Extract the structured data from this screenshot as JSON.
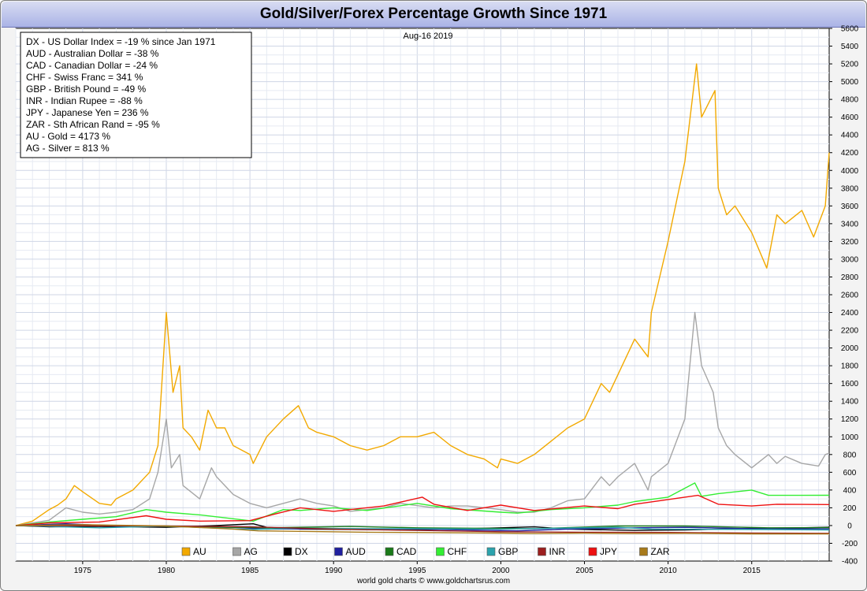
{
  "title": "Gold/Silver/Forex Percentage Growth Since 1971",
  "date_label": "Aug-16  2019",
  "footer": "world gold charts © www.goldchartsrus.com",
  "stats_box": [
    "DX - US Dollar Index = -19 % since Jan 1971",
    "AUD - Australian Dollar = -38 %",
    "CAD - Canadian Dollar = -24 %",
    "CHF - Swiss Franc = 341 %",
    "GBP - British Pound = -49 %",
    "INR - Indian Rupee = -88 %",
    "JPY - Japanese Yen = 236 %",
    "ZAR - Sth African Rand = -95 %",
    "AU - Gold = 4173 %",
    "AG - Silver = 813 %"
  ],
  "chart_data": {
    "type": "line",
    "title": "Gold/Silver/Forex Percentage Growth Since 1971",
    "xlim": [
      1971.0,
      2019.63
    ],
    "ylim": [
      -400,
      5600
    ],
    "x_ticks": [
      1975,
      1980,
      1985,
      1990,
      1995,
      2000,
      2005,
      2010,
      2015
    ],
    "y_ticks": [
      -400,
      -200,
      0,
      200,
      400,
      600,
      800,
      1000,
      1200,
      1400,
      1600,
      1800,
      2000,
      2200,
      2400,
      2600,
      2800,
      3000,
      3200,
      3400,
      3600,
      3800,
      4000,
      4200,
      4400,
      4600,
      4800,
      5000,
      5200,
      5400,
      5600
    ],
    "y_axis_side": "right",
    "grid": true,
    "legend_position": "bottom",
    "series": [
      {
        "name": "AU",
        "color": "#f2a900",
        "x": [
          1971,
          1972,
          1973,
          1973.5,
          1974,
          1974.5,
          1975,
          1976,
          1976.7,
          1977,
          1978,
          1979,
          1979.5,
          1980.0,
          1980.4,
          1980.8,
          1981,
          1981.5,
          1982,
          1982.5,
          1983,
          1983.5,
          1984,
          1985,
          1985.2,
          1986,
          1987,
          1987.9,
          1988.5,
          1989,
          1990,
          1991,
          1992,
          1993,
          1994,
          1995,
          1996,
          1997,
          1998,
          1999,
          1999.8,
          2000,
          2001,
          2002,
          2003,
          2004,
          2005,
          2006,
          2006.5,
          2007,
          2008,
          2008.8,
          2009,
          2010,
          2011,
          2011.7,
          2012,
          2012.8,
          2013,
          2013.5,
          2014,
          2015,
          2015.9,
          2016.5,
          2017,
          2018,
          2018.7,
          2019.4,
          2019.63
        ],
        "values": [
          0,
          50,
          180,
          230,
          300,
          450,
          380,
          250,
          230,
          300,
          400,
          600,
          900,
          2400,
          1500,
          1800,
          1100,
          1000,
          850,
          1300,
          1100,
          1100,
          900,
          800,
          700,
          1000,
          1200,
          1350,
          1100,
          1050,
          1000,
          900,
          850,
          900,
          1000,
          1000,
          1050,
          900,
          800,
          750,
          650,
          750,
          700,
          800,
          950,
          1100,
          1200,
          1600,
          1500,
          1700,
          2100,
          1900,
          2400,
          3200,
          4100,
          5200,
          4600,
          4900,
          3800,
          3500,
          3600,
          3300,
          2900,
          3500,
          3400,
          3550,
          3250,
          3600,
          4200
        ]
      },
      {
        "name": "AG",
        "color": "#a6a6a6",
        "x": [
          1971,
          1973,
          1974,
          1975,
          1976,
          1977,
          1978,
          1979,
          1979.5,
          1980.0,
          1980.3,
          1980.8,
          1981,
          1982,
          1982.7,
          1983,
          1984,
          1985,
          1986,
          1987,
          1988,
          1989,
          1990,
          1991,
          1993,
          1994,
          1996,
          1997,
          1998,
          2000,
          2001,
          2002,
          2003,
          2004,
          2005,
          2006,
          2006.5,
          2007,
          2008,
          2008.8,
          2009,
          2010,
          2011.0,
          2011.3,
          2011.6,
          2012,
          2012.7,
          2013,
          2013.5,
          2014,
          2015,
          2016,
          2016.5,
          2017,
          2018,
          2019,
          2019.4,
          2019.63
        ],
        "values": [
          0,
          60,
          200,
          150,
          130,
          150,
          180,
          300,
          600,
          1200,
          650,
          800,
          450,
          300,
          650,
          550,
          350,
          250,
          200,
          250,
          300,
          250,
          220,
          160,
          200,
          250,
          200,
          220,
          220,
          180,
          150,
          150,
          200,
          280,
          300,
          550,
          450,
          550,
          700,
          400,
          550,
          700,
          1200,
          1800,
          2400,
          1800,
          1500,
          1100,
          900,
          800,
          650,
          800,
          700,
          780,
          700,
          670,
          800,
          815
        ]
      },
      {
        "name": "DX",
        "color": "#000000",
        "x": [
          1971,
          1973,
          1976,
          1980,
          1983,
          1985.2,
          1986,
          1988,
          1992,
          1995,
          2000,
          2002,
          2004,
          2008,
          2011,
          2015,
          2017,
          2019.63
        ],
        "values": [
          0,
          -15,
          -10,
          -20,
          0,
          20,
          -20,
          -40,
          -45,
          -50,
          -25,
          -15,
          -40,
          -55,
          -50,
          -30,
          -30,
          -19
        ]
      },
      {
        "name": "AUD",
        "color": "#1f1f9f",
        "x": [
          1971,
          1974,
          1977,
          1980,
          1984,
          1986,
          1990,
          1995,
          2001,
          2004,
          2008,
          2011,
          2015,
          2019.63
        ],
        "values": [
          0,
          20,
          -5,
          -10,
          -20,
          -40,
          -35,
          -40,
          -60,
          -40,
          -25,
          -20,
          -35,
          -38
        ]
      },
      {
        "name": "CAD",
        "color": "#1a7a1a",
        "x": [
          1971,
          1976,
          1980,
          1986,
          1991,
          1995,
          2002,
          2007,
          2011,
          2016,
          2019.63
        ],
        "values": [
          0,
          5,
          -10,
          -25,
          -10,
          -25,
          -35,
          -5,
          -5,
          -25,
          -24
        ]
      },
      {
        "name": "CHF",
        "color": "#33ee33",
        "x": [
          1971,
          1973,
          1975,
          1977,
          1978.8,
          1980,
          1982,
          1985.2,
          1987,
          1988,
          1990,
          1992,
          1995,
          1997,
          2000,
          2001,
          2003,
          2005,
          2007,
          2008,
          2010,
          2011.6,
          2012,
          2013,
          2015,
          2016,
          2019.63
        ],
        "values": [
          0,
          40,
          70,
          100,
          180,
          150,
          120,
          50,
          180,
          170,
          200,
          170,
          250,
          190,
          150,
          140,
          180,
          200,
          230,
          270,
          320,
          480,
          330,
          360,
          400,
          340,
          341
        ]
      },
      {
        "name": "GBP",
        "color": "#2ba3ad",
        "x": [
          1971,
          1976,
          1980,
          1985,
          1988,
          1992,
          1995,
          2000,
          2007,
          2009,
          2016,
          2019.63
        ],
        "values": [
          0,
          -25,
          -5,
          -45,
          -30,
          -35,
          -35,
          -40,
          -20,
          -40,
          -45,
          -49
        ]
      },
      {
        "name": "INR",
        "color": "#9c1f1f",
        "x": [
          1971,
          1980,
          1985,
          1990,
          1995,
          2000,
          2005,
          2010,
          2015,
          2019.63
        ],
        "values": [
          0,
          -5,
          -15,
          -40,
          -55,
          -70,
          -75,
          -78,
          -85,
          -88
        ]
      },
      {
        "name": "JPY",
        "color": "#ee1111",
        "x": [
          1971,
          1973,
          1976,
          1978.8,
          1980,
          1982,
          1985,
          1986.5,
          1988,
          1990,
          1993,
          1995.3,
          1996,
          1998,
          2000,
          2002,
          2005,
          2007,
          2008,
          2011.8,
          2013,
          2015,
          2016.5,
          2019.63
        ],
        "values": [
          0,
          30,
          40,
          110,
          70,
          50,
          55,
          130,
          200,
          160,
          220,
          320,
          240,
          170,
          230,
          170,
          220,
          190,
          240,
          340,
          240,
          220,
          240,
          236
        ]
      },
      {
        "name": "ZAR",
        "color": "#a87a1a",
        "x": [
          1971,
          1975,
          1980,
          1984,
          1985.5,
          1988,
          1992,
          1996,
          2000,
          2002,
          2005,
          2008,
          2011,
          2015,
          2019.63
        ],
        "values": [
          0,
          10,
          -5,
          -40,
          -60,
          -65,
          -75,
          -80,
          -85,
          -90,
          -86,
          -90,
          -88,
          -94,
          -95
        ]
      }
    ]
  }
}
